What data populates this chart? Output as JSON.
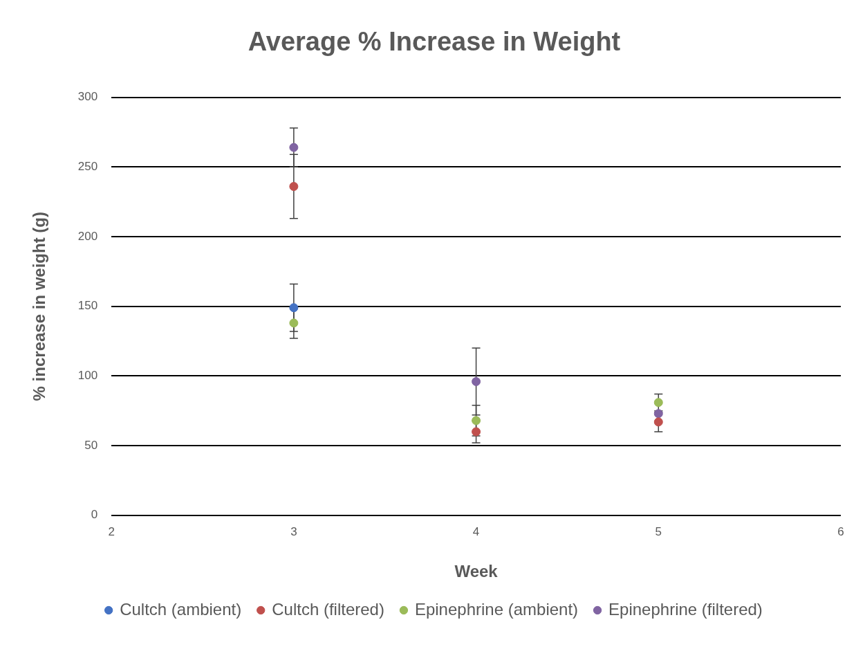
{
  "chart_data": {
    "type": "scatter",
    "title": "Average % Increase in Weight",
    "xlabel": "Week",
    "ylabel": "% increase in weight (g)",
    "x": [
      3,
      4,
      5
    ],
    "series": [
      {
        "name": "Cultch (ambient)",
        "color": "#4472c4",
        "values": [
          149,
          null,
          null
        ],
        "errors": [
          17,
          null,
          null
        ]
      },
      {
        "name": "Cultch (filtered)",
        "color": "#c0504d",
        "values": [
          236,
          60,
          67
        ],
        "errors": [
          23,
          8,
          7
        ]
      },
      {
        "name": "Epinephrine (ambient)",
        "color": "#9bbb59",
        "values": [
          138,
          68,
          81
        ],
        "errors": [
          11,
          11,
          6
        ]
      },
      {
        "name": "Epinephrine (filtered)",
        "color": "#8064a2",
        "values": [
          264,
          96,
          73
        ],
        "errors": [
          14,
          24,
          null
        ]
      }
    ],
    "xlim": [
      2,
      6
    ],
    "xticks": [
      2,
      3,
      4,
      5,
      6
    ],
    "ylim": [
      0,
      300
    ],
    "yticks": [
      0,
      50,
      100,
      150,
      200,
      250,
      300
    ],
    "grid": "y",
    "legend": "bottom",
    "marker": "circle"
  }
}
